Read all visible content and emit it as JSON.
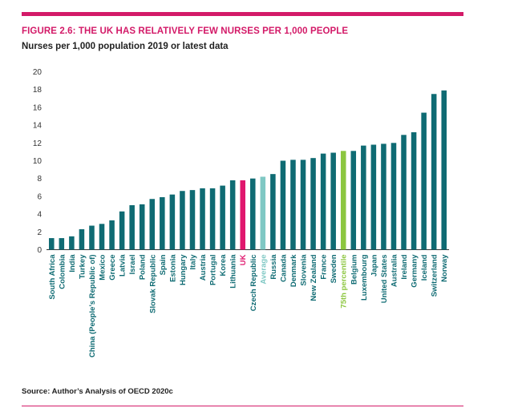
{
  "figure": {
    "title": "FIGURE 2.6: THE UK HAS RELATIVELY FEW NURSES PER 1,000 PEOPLE",
    "subtitle": "Nurses per 1,000 population 2019 or latest data",
    "source": "Source: Author’s Analysis of OECD 2020c"
  },
  "colors": {
    "accent": "#d31a68",
    "bar": "#0f6b73",
    "highlight_uk": "#e0176d",
    "average": "#7fc8c4",
    "percentile": "#8cc63f"
  },
  "chart_data": {
    "type": "bar",
    "title": "FIGURE 2.6: THE UK HAS RELATIVELY FEW NURSES PER 1,000 PEOPLE",
    "subtitle": "Nurses per 1,000 population 2019 or latest data",
    "xlabel": "",
    "ylabel": "",
    "ylim": [
      0,
      20
    ],
    "yticks": [
      0,
      2,
      4,
      6,
      8,
      10,
      12,
      14,
      16,
      18,
      20
    ],
    "grid": false,
    "legend": "none",
    "categories": [
      "South Africa",
      "Colombia",
      "India",
      "Turkey",
      "China (People’s Republic of)",
      "Mexico",
      "Greece",
      "Latvia",
      "Israel",
      "Poland",
      "Slovak Republic",
      "Spain",
      "Estonia",
      "Hungary",
      "Italy",
      "Austria",
      "Portugal",
      "Korea",
      "Lithuania",
      "UK",
      "Czech Republic",
      "Average",
      "Russia",
      "Canada",
      "Denmark",
      "Slovenia",
      "New Zealand",
      "France",
      "Sweden",
      "75th percentile",
      "Belgium",
      "Luxembourg",
      "Japan",
      "United States",
      "Australia",
      "Ireland",
      "Germany",
      "Iceland",
      "Switzerland",
      "Norway"
    ],
    "values": [
      1.3,
      1.3,
      1.5,
      2.3,
      2.7,
      2.9,
      3.3,
      4.3,
      5.0,
      5.1,
      5.7,
      5.9,
      6.2,
      6.6,
      6.7,
      6.9,
      6.9,
      7.2,
      7.8,
      7.8,
      8.0,
      8.2,
      8.5,
      10.0,
      10.1,
      10.1,
      10.3,
      10.8,
      10.9,
      11.1,
      11.1,
      11.7,
      11.8,
      11.9,
      12.0,
      12.9,
      13.2,
      15.4,
      17.5,
      17.9
    ],
    "highlights": {
      "UK": "highlight_uk",
      "Average": "average",
      "75th percentile": "percentile"
    }
  }
}
